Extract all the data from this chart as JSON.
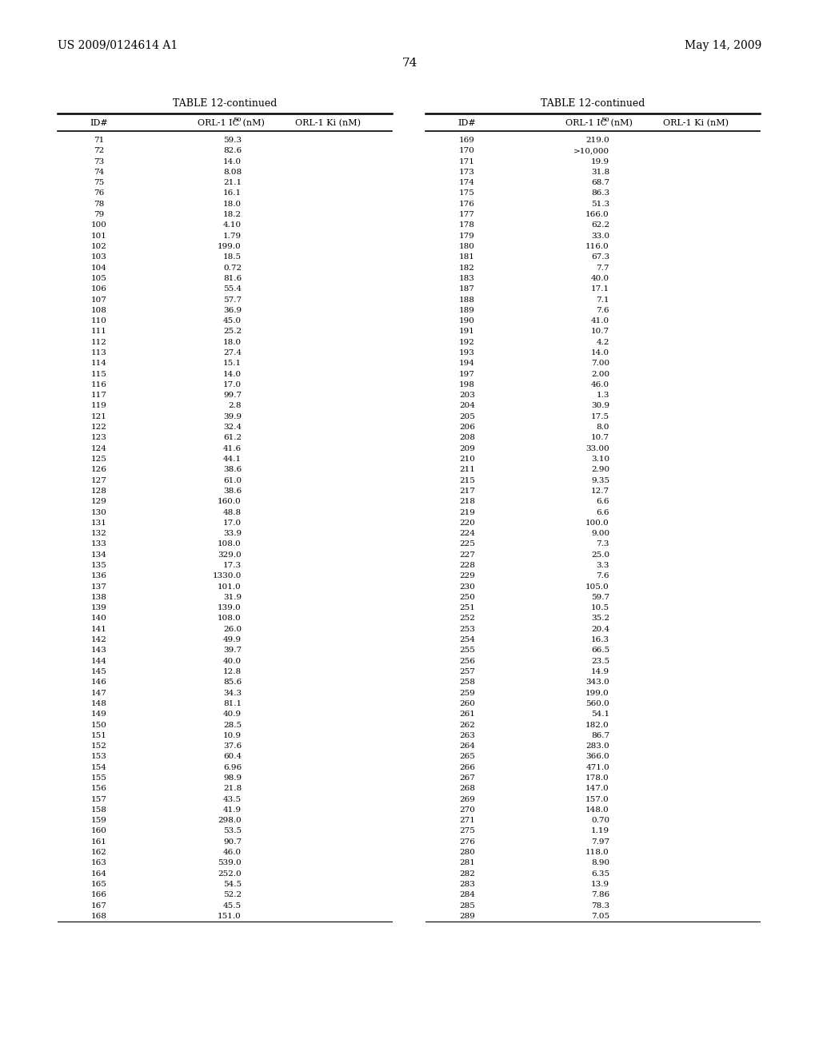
{
  "page_number": "74",
  "patent_left": "US 2009/0124614 A1",
  "patent_right": "May 14, 2009",
  "table_title": "TABLE 12-continued",
  "left_table": {
    "ids": [
      71,
      72,
      73,
      74,
      75,
      76,
      78,
      79,
      100,
      101,
      102,
      103,
      104,
      105,
      106,
      107,
      108,
      110,
      111,
      112,
      113,
      114,
      115,
      116,
      117,
      119,
      121,
      122,
      123,
      124,
      125,
      126,
      127,
      128,
      129,
      130,
      131,
      132,
      133,
      134,
      135,
      136,
      137,
      138,
      139,
      140,
      141,
      142,
      143,
      144,
      145,
      146,
      147,
      148,
      149,
      150,
      151,
      152,
      153,
      154,
      155,
      156,
      157,
      158,
      159,
      160,
      161,
      162,
      163,
      164,
      165,
      166,
      167,
      168
    ],
    "ic50": [
      "59.3",
      "82.6",
      "14.0",
      "8.08",
      "21.1",
      "16.1",
      "18.0",
      "18.2",
      "4.10",
      "1.79",
      "199.0",
      "18.5",
      "0.72",
      "81.6",
      "55.4",
      "57.7",
      "36.9",
      "45.0",
      "25.2",
      "18.0",
      "27.4",
      "15.1",
      "14.0",
      "17.0",
      "99.7",
      "2.8",
      "39.9",
      "32.4",
      "61.2",
      "41.6",
      "44.1",
      "38.6",
      "61.0",
      "38.6",
      "160.0",
      "48.8",
      "17.0",
      "33.9",
      "108.0",
      "329.0",
      "17.3",
      "1330.0",
      "101.0",
      "31.9",
      "139.0",
      "108.0",
      "26.0",
      "49.9",
      "39.7",
      "40.0",
      "12.8",
      "85.6",
      "34.3",
      "81.1",
      "40.9",
      "28.5",
      "10.9",
      "37.6",
      "60.4",
      "6.96",
      "98.9",
      "21.8",
      "43.5",
      "41.9",
      "298.0",
      "53.5",
      "90.7",
      "46.0",
      "539.0",
      "252.0",
      "54.5",
      "52.2",
      "45.5",
      "151.0"
    ],
    "ki": [
      "",
      "",
      "",
      "",
      "",
      "",
      "",
      "",
      "",
      "",
      "",
      "",
      "",
      "",
      "",
      "",
      "",
      "",
      "",
      "",
      "",
      "",
      "",
      "",
      "",
      "",
      "",
      "",
      "",
      "",
      "",
      "",
      "",
      "",
      "",
      "",
      "",
      "",
      "",
      "",
      "",
      "",
      "",
      "",
      "",
      "",
      "",
      "",
      "",
      "",
      "",
      "",
      "",
      "",
      "",
      "",
      "",
      "",
      "",
      "",
      "",
      "",
      "",
      "",
      "",
      "",
      "",
      "",
      "",
      "",
      "",
      "",
      "",
      ""
    ]
  },
  "right_table": {
    "ids": [
      169,
      170,
      171,
      173,
      174,
      175,
      176,
      177,
      178,
      179,
      180,
      181,
      182,
      183,
      187,
      188,
      189,
      190,
      191,
      192,
      193,
      194,
      197,
      198,
      203,
      204,
      205,
      206,
      208,
      209,
      210,
      211,
      215,
      217,
      218,
      219,
      220,
      224,
      225,
      227,
      228,
      229,
      230,
      250,
      251,
      252,
      253,
      254,
      255,
      256,
      257,
      258,
      259,
      260,
      261,
      262,
      263,
      264,
      265,
      266,
      267,
      268,
      269,
      270,
      271,
      275,
      276,
      280,
      281,
      282,
      283,
      284,
      285,
      289
    ],
    "ic50": [
      "219.0",
      ">10,000",
      "19.9",
      "31.8",
      "68.7",
      "86.3",
      "51.3",
      "166.0",
      "62.2",
      "33.0",
      "116.0",
      "67.3",
      "7.7",
      "40.0",
      "17.1",
      "7.1",
      "7.6",
      "41.0",
      "10.7",
      "4.2",
      "14.0",
      "7.00",
      "2.00",
      "46.0",
      "1.3",
      "30.9",
      "17.5",
      "8.0",
      "10.7",
      "33.00",
      "3.10",
      "2.90",
      "9.35",
      "12.7",
      "6.6",
      "6.6",
      "100.0",
      "9.00",
      "7.3",
      "25.0",
      "3.3",
      "7.6",
      "105.0",
      "59.7",
      "10.5",
      "35.2",
      "20.4",
      "16.3",
      "66.5",
      "23.5",
      "14.9",
      "343.0",
      "199.0",
      "560.0",
      "54.1",
      "182.0",
      "86.7",
      "283.0",
      "366.0",
      "471.0",
      "178.0",
      "147.0",
      "157.0",
      "148.0",
      "0.70",
      "1.19",
      "7.97",
      "118.0",
      "8.90",
      "6.35",
      "13.9",
      "7.86",
      "78.3",
      "7.05"
    ],
    "ki": [
      "",
      "",
      "",
      "",
      "",
      "",
      "",
      "",
      "",
      "",
      "",
      "",
      "",
      "",
      "",
      "",
      "",
      "",
      "",
      "",
      "",
      "",
      "",
      "",
      "",
      "",
      "",
      "",
      "",
      "",
      "",
      "",
      "",
      "",
      "",
      "",
      "",
      "",
      "",
      "",
      "",
      "",
      "",
      "",
      "",
      "",
      "",
      "",
      "",
      "",
      "",
      "",
      "",
      "",
      "",
      "",
      "",
      "",
      "",
      "",
      "",
      "",
      "",
      "",
      "",
      "",
      "",
      "",
      "",
      "",
      "",
      "",
      "",
      ""
    ]
  }
}
